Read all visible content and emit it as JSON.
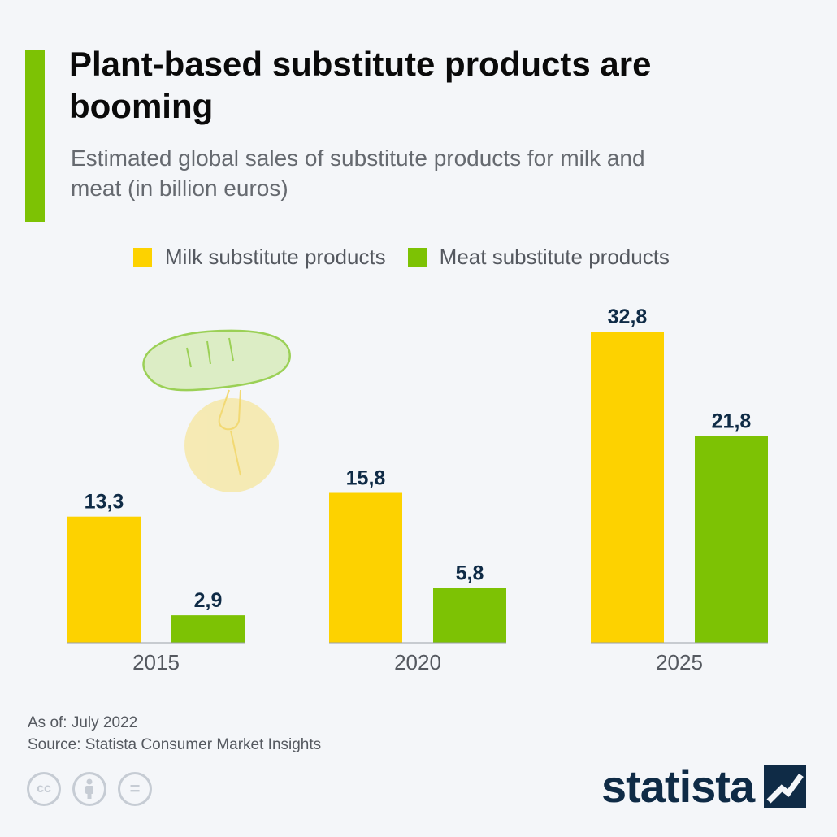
{
  "header": {
    "title": "Plant-based substitute products are booming",
    "subtitle": "Estimated global sales of substitute products for milk and meat (in billion euros)"
  },
  "colors": {
    "milk": "#fdd200",
    "meat": "#7dc204",
    "accent": "#7dc204",
    "value_label": "#0f2b46",
    "axis": "#9aa0a8"
  },
  "chart_data": {
    "type": "bar",
    "title": "Plant-based substitute products are booming",
    "subtitle": "Estimated global sales of substitute products for milk and meat (in billion euros)",
    "categories": [
      "2015",
      "2020",
      "2025"
    ],
    "series": [
      {
        "name": "Milk substitute products",
        "values": [
          13.3,
          15.8,
          32.8
        ],
        "labels": [
          "13,3",
          "15,8",
          "32,8"
        ],
        "color": "#fdd200"
      },
      {
        "name": "Meat substitute products",
        "values": [
          2.9,
          5.8,
          21.8
        ],
        "labels": [
          "2,9",
          "5,8",
          "21,8"
        ],
        "color": "#7dc204"
      }
    ],
    "ylim": [
      0,
      32.8
    ],
    "xlabel": "",
    "ylabel": "",
    "grid": false,
    "legend": "top"
  },
  "footer": {
    "as_of": "As of: July 2022",
    "source": "Source: Statista Consumer Market Insights"
  },
  "license_icons": [
    "cc-icon",
    "attribution-icon",
    "no-derivatives-icon"
  ],
  "license_labels": {
    "cc": "cc",
    "nd": "="
  },
  "brand": {
    "name": "statista"
  }
}
